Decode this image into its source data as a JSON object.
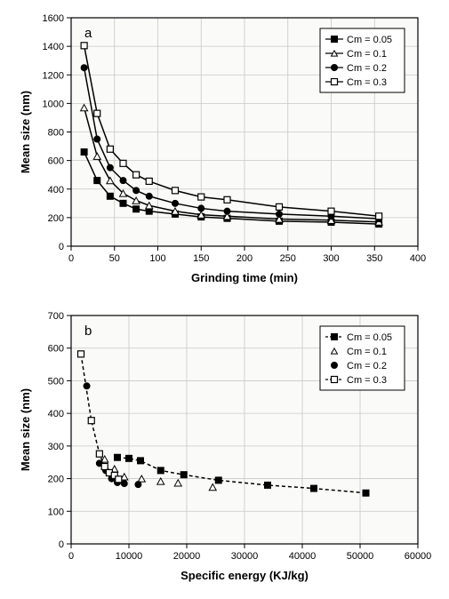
{
  "panel_a": {
    "letter": "a",
    "type": "line",
    "xlabel": "Grinding time (min)",
    "ylabel": "Mean size (nm)",
    "xlim": [
      0,
      400
    ],
    "ylim": [
      0,
      1600
    ],
    "xtick_step": 50,
    "ytick_step": 200,
    "background_color": "#fafaf8",
    "grid_color": "#c8c8c8",
    "label_fontsize": 12,
    "legend": {
      "entries": [
        "Cm = 0.05",
        "Cm = 0.1",
        "Cm = 0.2",
        "Cm = 0.3"
      ]
    },
    "series": [
      {
        "name": "Cm = 0.05",
        "marker": "filled-square",
        "marker_size": 7,
        "color": "#000000",
        "line_style": "solid",
        "x": [
          15,
          30,
          45,
          60,
          75,
          90,
          120,
          150,
          180,
          240,
          300,
          355
        ],
        "y": [
          660,
          460,
          350,
          300,
          260,
          245,
          225,
          205,
          195,
          175,
          168,
          155
        ]
      },
      {
        "name": "Cm = 0.1",
        "marker": "open-triangle",
        "marker_size": 8,
        "color": "#000000",
        "line_style": "solid",
        "x": [
          15,
          30,
          45,
          60,
          75,
          90,
          120,
          150,
          180,
          240,
          300,
          355
        ],
        "y": [
          970,
          630,
          460,
          370,
          320,
          285,
          245,
          220,
          210,
          190,
          182,
          170
        ]
      },
      {
        "name": "Cm = 0.2",
        "marker": "filled-circle",
        "marker_size": 7,
        "color": "#000000",
        "line_style": "solid",
        "x": [
          15,
          30,
          45,
          60,
          75,
          90,
          120,
          150,
          180,
          240,
          300,
          355
        ],
        "y": [
          1250,
          750,
          550,
          460,
          390,
          350,
          300,
          265,
          245,
          225,
          210,
          192
        ]
      },
      {
        "name": "Cm = 0.3",
        "marker": "open-square",
        "marker_size": 7,
        "color": "#000000",
        "line_style": "solid",
        "x": [
          15,
          30,
          45,
          60,
          75,
          90,
          120,
          150,
          180,
          240,
          300,
          355
        ],
        "y": [
          1405,
          930,
          680,
          580,
          500,
          455,
          390,
          345,
          325,
          275,
          245,
          210
        ]
      }
    ]
  },
  "panel_b": {
    "letter": "b",
    "type": "scatter-line",
    "xlabel": "Specific energy (KJ/kg)",
    "ylabel": "Mean size (nm)",
    "xlim": [
      0,
      60000
    ],
    "ylim": [
      0,
      700
    ],
    "xtick_step": 10000,
    "ytick_step": 100,
    "background_color": "#fafaf8",
    "grid_color": "#c8c8c8",
    "label_fontsize": 12,
    "legend": {
      "entries": [
        "Cm = 0.05",
        "Cm = 0.1",
        "Cm = 0.2",
        "Cm = 0.3"
      ]
    },
    "series": [
      {
        "name": "Cm = 0.05",
        "marker": "filled-square",
        "marker_size": 7,
        "color": "#000000",
        "line_style": "dashed",
        "has_line": true,
        "x": [
          8000,
          10000,
          12000,
          15500,
          19500,
          25500,
          34000,
          42000,
          51000
        ],
        "y": [
          265,
          262,
          255,
          225,
          212,
          195,
          180,
          170,
          156
        ]
      },
      {
        "name": "Cm = 0.1",
        "marker": "open-triangle",
        "marker_size": 8,
        "color": "#000000",
        "line_style": "none",
        "has_line": false,
        "x": [
          5800,
          7500,
          9200,
          12200,
          15500,
          18500,
          24500
        ],
        "y": [
          260,
          230,
          206,
          200,
          192,
          187,
          174
        ]
      },
      {
        "name": "Cm = 0.2",
        "marker": "filled-circle",
        "marker_size": 7,
        "color": "#000000",
        "line_style": "none",
        "has_line": false,
        "x": [
          2700,
          4900,
          6000,
          7000,
          8000,
          9200,
          11600
        ],
        "y": [
          484,
          247,
          225,
          200,
          188,
          185,
          182
        ]
      },
      {
        "name": "Cm = 0.3",
        "marker": "open-square",
        "marker_size": 7,
        "color": "#000000",
        "line_style": "dashed",
        "has_line": true,
        "x": [
          1700,
          3500,
          4900,
          5800,
          6600,
          7500,
          8200
        ],
        "y": [
          582,
          378,
          276,
          237,
          218,
          210,
          198
        ]
      }
    ]
  }
}
